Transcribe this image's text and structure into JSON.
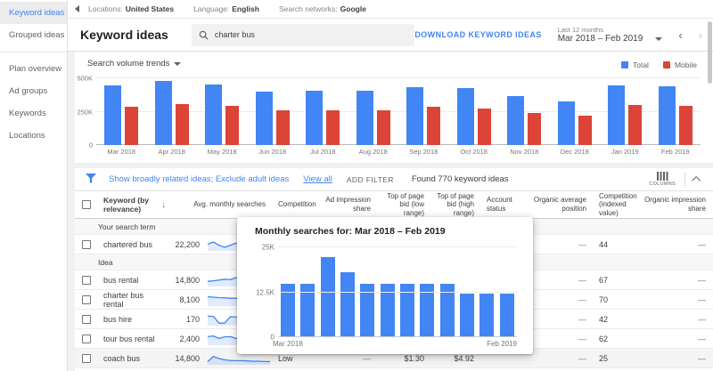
{
  "topbar": {
    "locations_label": "Locations:",
    "locations_value": "United States",
    "language_label": "Language:",
    "language_value": "English",
    "networks_label": "Search networks:",
    "networks_value": "Google"
  },
  "sidebar": {
    "items": [
      {
        "label": "Keyword ideas",
        "active": true
      },
      {
        "label": "Grouped ideas",
        "active": false
      },
      {
        "label": "Plan overview",
        "active": false
      },
      {
        "label": "Ad groups",
        "active": false
      },
      {
        "label": "Keywords",
        "active": false
      },
      {
        "label": "Locations",
        "active": false
      }
    ],
    "divider_after": 2
  },
  "header": {
    "title": "Keyword ideas",
    "search_value": "charter bus",
    "download_label": "DOWNLOAD KEYWORD IDEAS",
    "range_caption": "Last 12 months",
    "range_value": "Mar 2018 – Feb 2019"
  },
  "trend_section": {
    "dropdown_label": "Search volume trends",
    "legend": [
      {
        "label": "Total",
        "color": "#4285f4"
      },
      {
        "label": "Mobile",
        "color": "#db4437"
      }
    ]
  },
  "chart_data": [
    {
      "id": "search-volume-trends",
      "type": "bar",
      "title": "Search volume trends",
      "categories": [
        "Mar 2018",
        "Apr 2018",
        "May 2018",
        "Jun 2018",
        "Jul 2018",
        "Aug 2018",
        "Sep 2018",
        "Oct 2018",
        "Nov 2018",
        "Dec 2018",
        "Jan 2019",
        "Feb 2019"
      ],
      "series": [
        {
          "name": "Total",
          "color": "#4285f4",
          "values": [
            450000,
            480000,
            455000,
            400000,
            405000,
            410000,
            435000,
            430000,
            370000,
            330000,
            450000,
            438000
          ]
        },
        {
          "name": "Mobile",
          "color": "#db4437",
          "values": [
            290000,
            308000,
            295000,
            258000,
            262000,
            262000,
            285000,
            272000,
            243000,
            223000,
            303000,
            292000
          ]
        }
      ],
      "ylim": [
        0,
        500000
      ],
      "yticks": [
        {
          "label": "500K",
          "value": 500000
        },
        {
          "label": "250K",
          "value": 250000
        },
        {
          "label": "0",
          "value": 0
        }
      ],
      "grid": true,
      "legend_position": "top-right"
    },
    {
      "id": "monthly-searches-popup",
      "type": "bar",
      "title": "Monthly searches for: Mar 2018 – Feb 2019",
      "categories": [
        "Mar 2018",
        "Apr 2018",
        "May 2018",
        "Jun 2018",
        "Jul 2018",
        "Aug 2018",
        "Sep 2018",
        "Oct 2018",
        "Nov 2018",
        "Dec 2018",
        "Jan 2019",
        "Feb 2019"
      ],
      "values": [
        14800,
        14800,
        22200,
        18100,
        14800,
        14800,
        14800,
        14800,
        14800,
        12100,
        12100,
        12100
      ],
      "color": "#4285f4",
      "ylim": [
        0,
        25000
      ],
      "yticks": [
        {
          "label": "25K",
          "value": 25000
        },
        {
          "label": "12.5K",
          "value": 12500
        },
        {
          "label": "0",
          "value": 0
        }
      ],
      "x_axis_labels_shown": [
        "Mar 2018",
        "Feb 2019"
      ],
      "grid": true
    }
  ],
  "filterbar": {
    "filter_links": "Show broadly related ideas; Exclude adult ideas",
    "view_all": "View all",
    "add_filter": "ADD FILTER",
    "found_text": "Found 770 keyword ideas",
    "columns_label": "COLUMNS"
  },
  "table": {
    "columns": [
      "Keyword (by relevance)",
      "Avg. monthly searches",
      "Competition",
      "Ad impression share",
      "Top of page bid (low range)",
      "Top of page bid (high range)",
      "Account status",
      "Organic average position",
      "Competition (indexed value)",
      "Organic impression share"
    ],
    "sections": [
      {
        "label": "Your search term",
        "rows": [
          {
            "keyword": "chartered bus",
            "avg_monthly_searches": "22,200",
            "spark": [
              0.45,
              0.25,
              0.55,
              0.75,
              0.55,
              0.35,
              0.5,
              0.65,
              0.45,
              0.7,
              0.5,
              0.2
            ],
            "competition": "",
            "ad_impression_share": "",
            "bid_low": "",
            "bid_high": "",
            "account_status": "",
            "organic_avg_position": "—",
            "competition_indexed": "44",
            "organic_impression_share": "—",
            "highlighted": false
          }
        ]
      },
      {
        "label": "Idea",
        "rows": [
          {
            "keyword": "bus rental",
            "avg_monthly_searches": "14,800",
            "spark": [
              0.6,
              0.55,
              0.48,
              0.4,
              0.45,
              0.25,
              0.45,
              0.58,
              0.42,
              0.6,
              0.5,
              0.45
            ],
            "competition": "",
            "ad_impression_share": "",
            "bid_low": "",
            "bid_high": "",
            "account_status": "",
            "organic_avg_position": "—",
            "competition_indexed": "67",
            "organic_impression_share": "—",
            "highlighted": false
          },
          {
            "keyword": "charter bus rental",
            "avg_monthly_searches": "8,100",
            "spark": [
              0.22,
              0.25,
              0.3,
              0.32,
              0.35,
              0.35,
              0.38,
              0.4,
              0.45,
              0.85,
              0.3,
              0.22
            ],
            "competition": "",
            "ad_impression_share": "",
            "bid_low": "",
            "bid_high": "",
            "account_status": "",
            "organic_avg_position": "—",
            "competition_indexed": "70",
            "organic_impression_share": "—",
            "highlighted": false
          },
          {
            "keyword": "bus hire",
            "avg_monthly_searches": "170",
            "spark": [
              0.2,
              0.22,
              0.85,
              0.85,
              0.25,
              0.28,
              0.3,
              0.8,
              0.85,
              0.8,
              0.25,
              0.2
            ],
            "competition": "",
            "ad_impression_share": "",
            "bid_low": "",
            "bid_high": "",
            "account_status": "",
            "organic_avg_position": "—",
            "competition_indexed": "42",
            "organic_impression_share": "—",
            "highlighted": false
          },
          {
            "keyword": "tour bus rental",
            "avg_monthly_searches": "2,400",
            "spark": [
              0.28,
              0.22,
              0.45,
              0.3,
              0.28,
              0.45,
              0.4,
              0.48,
              0.5,
              0.85,
              0.3,
              0.25
            ],
            "competition": "",
            "ad_impression_share": "",
            "bid_low": "",
            "bid_high": "",
            "account_status": "",
            "organic_avg_position": "—",
            "competition_indexed": "62",
            "organic_impression_share": "—",
            "highlighted": false
          },
          {
            "keyword": "coach bus",
            "avg_monthly_searches": "14,800",
            "spark": [
              0.8,
              0.3,
              0.5,
              0.62,
              0.68,
              0.7,
              0.7,
              0.72,
              0.75,
              0.75,
              0.78,
              0.78
            ],
            "competition": "Low",
            "ad_impression_share": "—",
            "bid_low": "$1.30",
            "bid_high": "$4.92",
            "account_status": "",
            "organic_avg_position": "—",
            "competition_indexed": "25",
            "organic_impression_share": "—",
            "highlighted": true
          }
        ]
      }
    ]
  },
  "popup": {
    "title": "Monthly searches for: Mar 2018 – Feb 2019",
    "x_start_label": "Mar 2018",
    "x_end_label": "Feb 2019"
  }
}
